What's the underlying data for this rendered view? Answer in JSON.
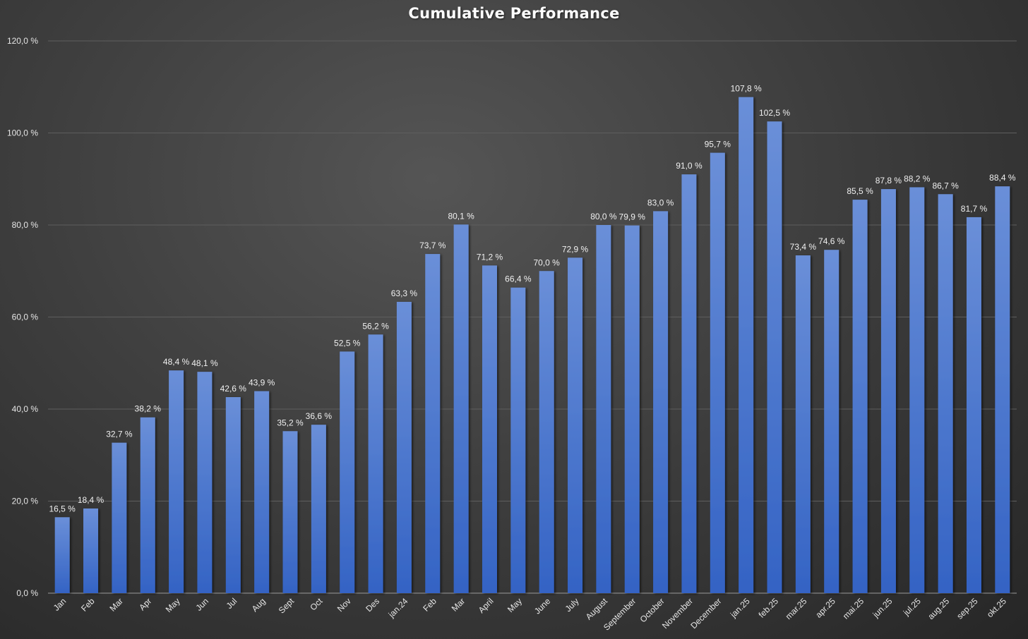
{
  "chart_data": {
    "type": "bar",
    "title": "Cumulative Performance",
    "xlabel": "",
    "ylabel": "",
    "ylim": [
      0,
      120
    ],
    "yticks": [
      0,
      20,
      40,
      60,
      80,
      100,
      120
    ],
    "ytick_labels": [
      "0,0 %",
      "20,0 %",
      "40,0 %",
      "60,0 %",
      "80,0 %",
      "100,0 %",
      "120,0 %"
    ],
    "grid": true,
    "legend": "none",
    "bar_color": "#4472C4",
    "categories": [
      "Jan",
      "Feb",
      "Mar",
      "Apr",
      "May",
      "Jun",
      "Jul",
      "Aug",
      "Sept",
      "Oct",
      "Nov",
      "Des",
      "jan.24",
      "Feb",
      "Mar",
      "April",
      "May",
      "June",
      "July",
      "August",
      "September",
      "October",
      "November",
      "December",
      "jan.25",
      "feb.25",
      "mar.25",
      "apr.25",
      "mai.25",
      "jun.25",
      "jul.25",
      "aug.25",
      "sep.25",
      "okt.25"
    ],
    "values": [
      16.5,
      18.4,
      32.7,
      38.2,
      48.4,
      48.1,
      42.6,
      43.9,
      35.2,
      36.6,
      52.5,
      56.2,
      63.3,
      73.7,
      80.1,
      71.2,
      66.4,
      70.0,
      72.9,
      80.0,
      79.9,
      83.0,
      91.0,
      95.7,
      107.8,
      102.5,
      73.4,
      74.6,
      85.5,
      87.8,
      88.2,
      86.7,
      81.7,
      88.4
    ],
    "data_labels": [
      "16,5 %",
      "18,4 %",
      "32,7 %",
      "38,2 %",
      "48,4 %",
      "48,1 %",
      "42,6 %",
      "43,9 %",
      "35,2 %",
      "36,6 %",
      "52,5 %",
      "56,2 %",
      "63,3 %",
      "73,7 %",
      "80,1 %",
      "71,2 %",
      "66,4 %",
      "70,0 %",
      "72,9 %",
      "80,0 %",
      "79,9 %",
      "83,0 %",
      "91,0 %",
      "95,7 %",
      "107,8 %",
      "102,5 %",
      "73,4 %",
      "74,6 %",
      "85,5 %",
      "87,8 %",
      "88,2 %",
      "86,7 %",
      "81,7 %",
      "88,4 %"
    ]
  }
}
